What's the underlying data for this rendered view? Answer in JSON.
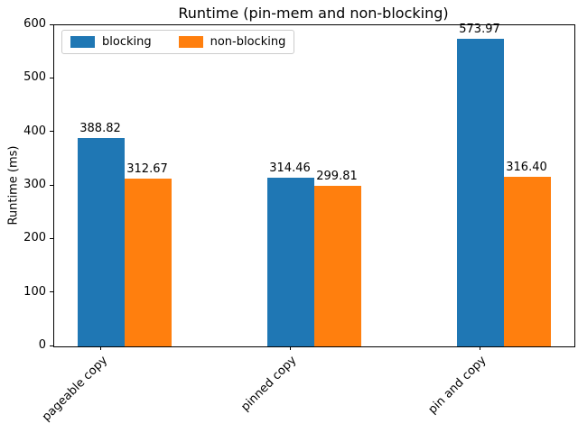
{
  "title": "Runtime (pin-mem and non-blocking)",
  "ylabel": "Runtime (ms)",
  "legend": {
    "items": [
      {
        "label": "blocking",
        "color": "#1f77b4"
      },
      {
        "label": "non-blocking",
        "color": "#ff7f0e"
      }
    ]
  },
  "chart_data": {
    "type": "bar",
    "title": "Runtime (pin-mem and non-blocking)",
    "xlabel": "",
    "ylabel": "Runtime (ms)",
    "categories": [
      "pageable copy",
      "pinned copy",
      "pin and copy"
    ],
    "series": [
      {
        "name": "blocking",
        "color": "#1f77b4",
        "values": [
          388.82,
          314.46,
          573.97
        ]
      },
      {
        "name": "non-blocking",
        "color": "#ff7f0e",
        "values": [
          312.67,
          299.81,
          316.4
        ]
      }
    ],
    "bar_value_labels": [
      [
        "388.82",
        "314.46",
        "573.97"
      ],
      [
        "312.67",
        "299.81",
        "316.40"
      ]
    ],
    "ylim": [
      0,
      600
    ],
    "yticks": [
      0,
      100,
      200,
      300,
      400,
      500,
      600
    ],
    "grid": false,
    "legend_position": "upper left",
    "legend_columns": 2,
    "x_tick_rotation": 45
  }
}
